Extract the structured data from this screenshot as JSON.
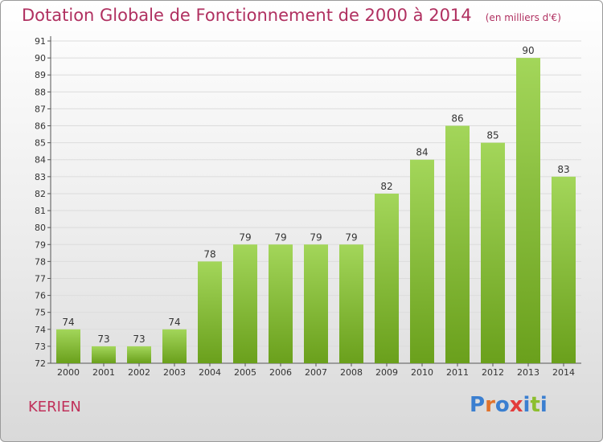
{
  "header": {
    "title": "Dotation Globale de Fonctionnement de 2000 à 2014",
    "unit": "(en milliers d'€)"
  },
  "commune": "KERIEN",
  "logo": {
    "text": "Proxiti",
    "letter_colors": [
      "#3b7fd0",
      "#e0722c",
      "#3b7fd0",
      "#e33c3c",
      "#3b7fd0",
      "#8dbf2f",
      "#3b7fd0"
    ]
  },
  "chart_data": {
    "type": "bar",
    "categories": [
      "2000",
      "2001",
      "2002",
      "2003",
      "2004",
      "2005",
      "2006",
      "2007",
      "2008",
      "2009",
      "2010",
      "2011",
      "2012",
      "2013",
      "2014"
    ],
    "values": [
      74,
      73,
      73,
      74,
      78,
      79,
      79,
      79,
      79,
      82,
      84,
      86,
      85,
      90,
      83
    ],
    "title": "Dotation Globale de Fonctionnement de 2000 à 2014",
    "ylim": [
      72,
      91
    ],
    "yticks": [
      72,
      73,
      74,
      75,
      76,
      77,
      78,
      79,
      80,
      81,
      82,
      83,
      84,
      85,
      86,
      87,
      88,
      89,
      90,
      91
    ],
    "grid": true,
    "bar_color_top": "#a3d65a",
    "bar_color_bottom": "#6aa01c"
  }
}
